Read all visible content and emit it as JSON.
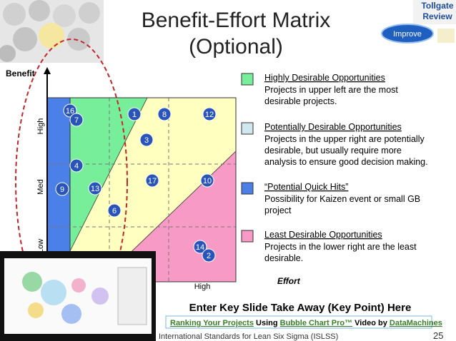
{
  "header": {
    "title": [
      "Benefit-Effort Matrix",
      "(Optional)"
    ],
    "badge": [
      "Tollgate",
      "Review"
    ],
    "button": "Improve"
  },
  "matrix": {
    "y_axis": "Benefit",
    "x_axis": "Effort",
    "y_levels": [
      "High",
      "Med",
      "Low"
    ],
    "x_level": "High",
    "points": [
      "16",
      "7",
      "1",
      "8",
      "12",
      "3",
      "4",
      "9",
      "13",
      "17",
      "10",
      "6",
      "14",
      "2"
    ]
  },
  "legend": [
    {
      "title": "Highly Desirable Opportunities",
      "lines": [
        "Projects in upper left are the most",
        "desirable projects."
      ]
    },
    {
      "title": "Potentially Desirable Opportunities",
      "lines": [
        "Projects in the upper right are potentially",
        "desirable, but usually require more",
        "analysis to ensure good decision making."
      ]
    },
    {
      "title": "“Potential Quick Hits”",
      "lines": [
        "Possibility for Kaizen event or small GB",
        "project"
      ]
    },
    {
      "title": "Least Desirable Opportunities",
      "lines": [
        "Projects in the lower right are the least",
        "desirable."
      ]
    }
  ],
  "takeaway": "Enter Key Slide Take Away (Key Point) Here",
  "link": [
    "Ranking Your Projects",
    "Using",
    "Bubble Chart Pro™",
    "Video by",
    "DataMachines"
  ],
  "footer": {
    "text": "International Standards for Lean Six Sigma (ISLSS)",
    "page": "25"
  }
}
